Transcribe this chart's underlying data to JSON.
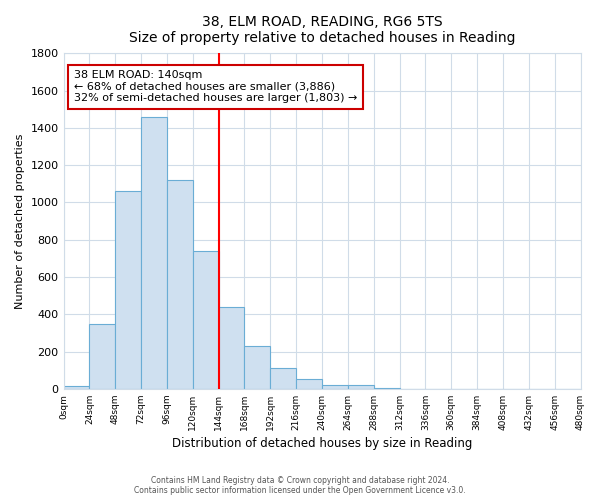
{
  "title": "38, ELM ROAD, READING, RG6 5TS",
  "subtitle": "Size of property relative to detached houses in Reading",
  "xlabel": "Distribution of detached houses by size in Reading",
  "ylabel": "Number of detached properties",
  "bar_left_edges": [
    0,
    24,
    48,
    72,
    96,
    120,
    144,
    168,
    192,
    216,
    240,
    264,
    288,
    312,
    336,
    360,
    384,
    408,
    432,
    456
  ],
  "bar_heights": [
    15,
    350,
    1060,
    1460,
    1120,
    740,
    440,
    230,
    110,
    55,
    20,
    20,
    5,
    0,
    0,
    0,
    0,
    0,
    0,
    0
  ],
  "bin_width": 24,
  "bar_color": "#cfe0f0",
  "bar_edge_color": "#6aadd5",
  "vline_x": 144,
  "vline_color": "red",
  "annotation_title": "38 ELM ROAD: 140sqm",
  "annotation_line1": "← 68% of detached houses are smaller (3,886)",
  "annotation_line2": "32% of semi-detached houses are larger (1,803) →",
  "annotation_box_facecolor": "white",
  "annotation_box_edgecolor": "#cc0000",
  "ylim": [
    0,
    1800
  ],
  "yticks": [
    0,
    200,
    400,
    600,
    800,
    1000,
    1200,
    1400,
    1600,
    1800
  ],
  "tick_labels": [
    "0sqm",
    "24sqm",
    "48sqm",
    "72sqm",
    "96sqm",
    "120sqm",
    "144sqm",
    "168sqm",
    "192sqm",
    "216sqm",
    "240sqm",
    "264sqm",
    "288sqm",
    "312sqm",
    "336sqm",
    "360sqm",
    "384sqm",
    "408sqm",
    "432sqm",
    "456sqm",
    "480sqm"
  ],
  "tick_positions": [
    0,
    24,
    48,
    72,
    96,
    120,
    144,
    168,
    192,
    216,
    240,
    264,
    288,
    312,
    336,
    360,
    384,
    408,
    432,
    456,
    480
  ],
  "xlim": [
    0,
    480
  ],
  "fig_background_color": "#ffffff",
  "plot_background_color": "#ffffff",
  "grid_color": "#d0dce8",
  "footer1": "Contains HM Land Registry data © Crown copyright and database right 2024.",
  "footer2": "Contains public sector information licensed under the Open Government Licence v3.0."
}
